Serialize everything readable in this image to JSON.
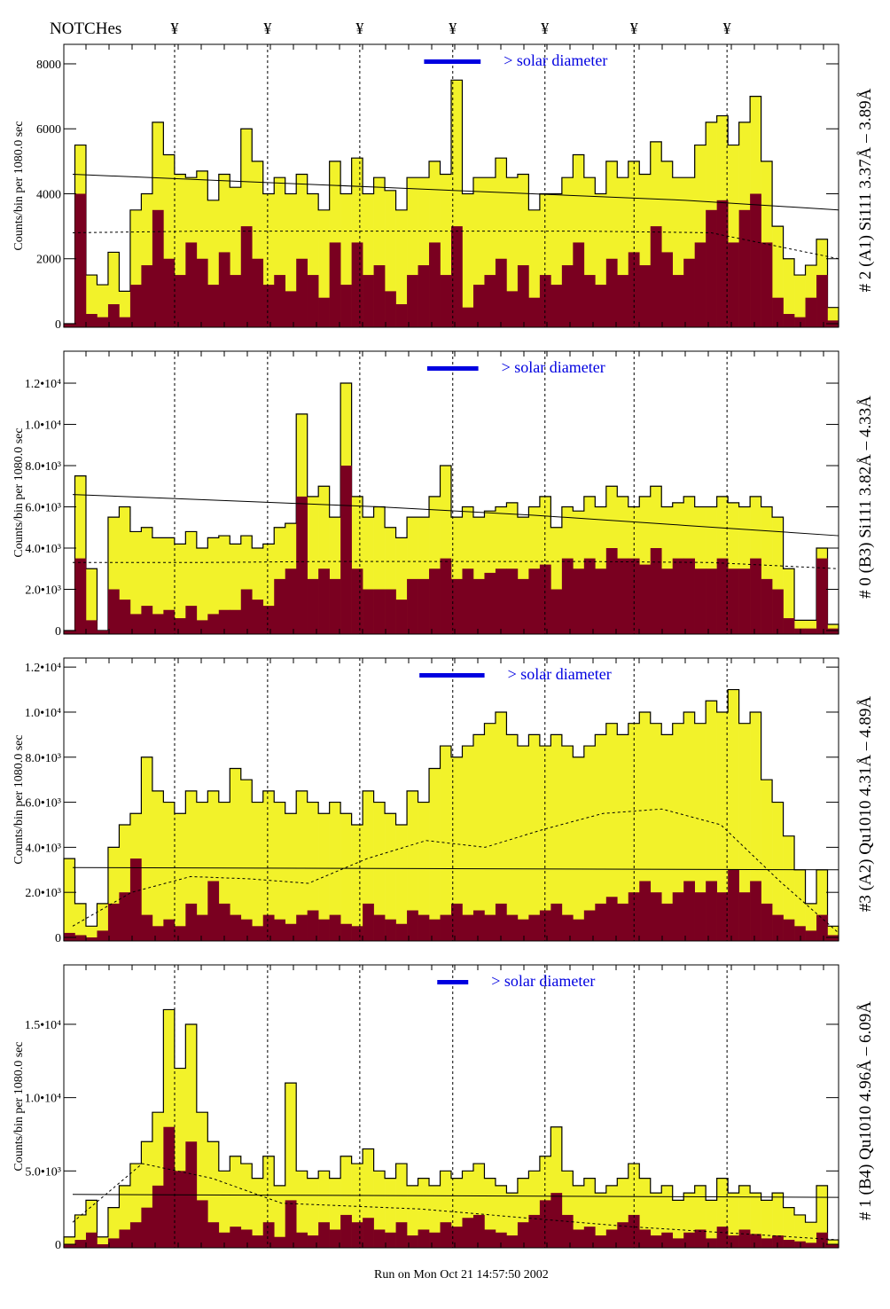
{
  "header": {
    "title": "NOTCHes",
    "notch_symbol": "¥"
  },
  "footer": "Run on Mon Oct 21 14:57:50 2002",
  "colors": {
    "total": "#f2f22a",
    "subset": "#7a0020",
    "solar_bar": "#0000e0",
    "solar_text": "#0000e0"
  },
  "chart_data": [
    {
      "type": "bar",
      "label": "# 2 (A1) Si111  3.37Å – 3.89Å",
      "ylabel": "Counts/bin per   1080.0 sec",
      "ylim": [
        0,
        8600
      ],
      "yticks": [
        0,
        2000,
        4000,
        6000,
        8000
      ],
      "ytick_labels": [
        "0",
        "2000",
        "4000",
        "6000",
        "8000"
      ],
      "legend": "> solar diameter",
      "series": [
        {
          "values": [
            0,
            5500,
            1500,
            1200,
            2200,
            1000,
            3500,
            4000,
            6200,
            5200,
            4600,
            4500,
            4700,
            3800,
            4600,
            4200,
            6000,
            5000,
            4000,
            4500,
            4000,
            4600,
            4000,
            3500,
            5000,
            4000,
            5100,
            4000,
            4500,
            4100,
            3500,
            4500,
            4500,
            5000,
            4600,
            7500,
            4000,
            4500,
            4500,
            5100,
            4500,
            4600,
            3500,
            4000,
            4000,
            4500,
            5200,
            4500,
            4000,
            5000,
            4500,
            5000,
            4600,
            5600,
            5000,
            4500,
            4500,
            5500,
            6200,
            6400,
            5500,
            6200,
            7000,
            5000,
            3000,
            2000,
            1500,
            1800,
            2600,
            500
          ]
        },
        {
          "values": [
            0,
            4000,
            300,
            200,
            600,
            200,
            1200,
            1800,
            3500,
            2000,
            1500,
            2500,
            2000,
            1200,
            2200,
            1500,
            3000,
            2000,
            1200,
            1500,
            1000,
            2000,
            1500,
            800,
            2500,
            1200,
            2500,
            1500,
            1800,
            1000,
            600,
            1500,
            1800,
            2500,
            1500,
            3000,
            500,
            1200,
            1500,
            2000,
            1000,
            1800,
            800,
            1500,
            1200,
            1800,
            2500,
            1500,
            1200,
            2000,
            1500,
            2200,
            1800,
            3000,
            2200,
            1500,
            2000,
            2500,
            3500,
            3800,
            2500,
            3500,
            4000,
            2500,
            800,
            300,
            200,
            800,
            1500,
            100
          ]
        }
      ],
      "smooth_solid": [
        4600,
        4400,
        4200,
        4000,
        3800,
        3500
      ],
      "smooth_dashed": [
        2800,
        2850,
        2850,
        2850,
        2850,
        2800,
        2000
      ],
      "notch_positions": [
        0.143,
        0.263,
        0.382,
        0.502,
        0.621,
        0.736,
        0.856
      ],
      "solar_bar": [
        0.465,
        0.538
      ]
    },
    {
      "type": "bar",
      "label": "# 0 (B3) Si111  3.82Å – 4.33Å",
      "ylabel": "Counts/bin per   1080.0 sec",
      "ylim": [
        0,
        13550
      ],
      "yticks": [
        0,
        2000,
        4000,
        6000,
        8000,
        10000,
        12000
      ],
      "ytick_labels": [
        "0",
        "2.0•10³",
        "4.0•10³",
        "6.0•10³",
        "8.0•10³",
        "1.0•10⁴",
        "1.2•10⁴"
      ],
      "legend": "> solar diameter",
      "series": [
        {
          "values": [
            0,
            7500,
            3000,
            0,
            5500,
            6000,
            4800,
            5000,
            4500,
            4500,
            4200,
            4800,
            4000,
            4500,
            4600,
            4200,
            4600,
            4000,
            4200,
            5000,
            5200,
            10500,
            6500,
            7000,
            5500,
            12000,
            6500,
            5500,
            6000,
            5000,
            4500,
            5500,
            5500,
            6500,
            8000,
            5500,
            6000,
            5500,
            5800,
            6000,
            6200,
            5500,
            6000,
            6500,
            5000,
            6000,
            5800,
            6500,
            6000,
            7000,
            6500,
            6000,
            6500,
            7000,
            6000,
            6200,
            6500,
            6000,
            6000,
            6500,
            6200,
            6000,
            6500,
            6000,
            5500,
            3000,
            500,
            500,
            4000,
            300
          ]
        },
        {
          "values": [
            0,
            3500,
            500,
            0,
            2000,
            1500,
            800,
            1200,
            800,
            1000,
            600,
            1200,
            500,
            800,
            1000,
            1000,
            2000,
            1500,
            1200,
            2500,
            3000,
            6500,
            2500,
            3000,
            2500,
            8000,
            3000,
            2000,
            2000,
            2000,
            1500,
            2500,
            2500,
            3000,
            3500,
            2500,
            3000,
            2500,
            2800,
            3000,
            3000,
            2500,
            3000,
            3200,
            2000,
            3500,
            3000,
            3500,
            3000,
            4000,
            3500,
            3500,
            3200,
            4000,
            3000,
            3500,
            3500,
            3000,
            3000,
            3500,
            3000,
            3000,
            3500,
            2500,
            2000,
            600,
            100,
            100,
            3500,
            100
          ]
        }
      ],
      "smooth_solid": [
        6600,
        6300,
        6000,
        5600,
        5100,
        4600
      ],
      "smooth_dashed": [
        3300,
        3300,
        3350,
        3350,
        3350,
        3300,
        3000
      ],
      "notch_positions": [
        0.143,
        0.263,
        0.382,
        0.502,
        0.621,
        0.736,
        0.856
      ],
      "solar_bar": [
        0.469,
        0.535
      ]
    },
    {
      "type": "bar",
      "label": "#3 (A2) Qu1010  4.31Å – 4.89Å",
      "ylabel": "Counts/bin per   1080.0 sec",
      "ylim": [
        0,
        12400
      ],
      "yticks": [
        0,
        2000,
        4000,
        6000,
        8000,
        10000,
        12000
      ],
      "ytick_labels": [
        "0",
        "2.0•10³",
        "4.0•10³",
        "6.0•10³",
        "8.0•10³",
        "1.0•10⁴",
        "1.2•10⁴"
      ],
      "legend": "> solar diameter",
      "series": [
        {
          "values": [
            3500,
            1500,
            500,
            1500,
            4000,
            5000,
            5500,
            8000,
            6500,
            6000,
            5500,
            6500,
            6000,
            6500,
            6000,
            7500,
            7000,
            6000,
            6500,
            6000,
            5500,
            6500,
            6000,
            5500,
            6000,
            5500,
            5000,
            6500,
            6000,
            5500,
            5000,
            6500,
            6000,
            7500,
            8500,
            8000,
            8500,
            9000,
            9500,
            10000,
            9000,
            8500,
            9000,
            8500,
            9000,
            8500,
            8000,
            8500,
            9000,
            9500,
            9000,
            9500,
            10000,
            9500,
            9000,
            9500,
            10000,
            9500,
            10500,
            10000,
            11000,
            9500,
            10000,
            7000,
            6000,
            4500,
            3000,
            1500,
            3000,
            500
          ]
        },
        {
          "values": [
            200,
            100,
            0,
            300,
            1500,
            2000,
            3500,
            1000,
            500,
            800,
            500,
            1500,
            1000,
            2500,
            1500,
            1000,
            800,
            500,
            1000,
            800,
            600,
            1000,
            1200,
            800,
            1000,
            600,
            500,
            1500,
            1000,
            800,
            600,
            1200,
            1000,
            800,
            1000,
            1500,
            1000,
            1200,
            1000,
            1500,
            1000,
            800,
            1000,
            1200,
            1500,
            1000,
            800,
            1200,
            1500,
            1800,
            1500,
            2000,
            2500,
            2000,
            1500,
            2000,
            2500,
            2000,
            2500,
            2000,
            3000,
            2000,
            2500,
            1500,
            1000,
            800,
            500,
            300,
            1000,
            100
          ]
        }
      ],
      "smooth_solid": [
        3100,
        3000
      ],
      "smooth_dashed": [
        500,
        2000,
        2700,
        2600,
        2400,
        3500,
        4300,
        4000,
        4800,
        5500,
        5700,
        5000,
        2500,
        200
      ],
      "notch_positions": [
        0.143,
        0.263,
        0.382,
        0.502,
        0.621,
        0.736,
        0.856
      ],
      "solar_bar": [
        0.459,
        0.543
      ]
    },
    {
      "type": "bar",
      "label": "# 1 (B4) Qu1010 4.96Å – 6.09Å",
      "ylabel": "Counts/bin per   1080.0 sec",
      "ylim": [
        0,
        19050
      ],
      "yticks": [
        0,
        5000,
        10000,
        15000
      ],
      "ytick_labels": [
        "0",
        "5.0•10³",
        "1.0•10⁴",
        "1.5•10⁴"
      ],
      "legend": "> solar diameter",
      "series": [
        {
          "values": [
            500,
            2000,
            3000,
            500,
            2500,
            4000,
            5500,
            7000,
            9000,
            16000,
            12000,
            15000,
            9000,
            7000,
            5000,
            6000,
            5500,
            4500,
            6000,
            4000,
            11000,
            5000,
            4500,
            5000,
            4500,
            6000,
            5500,
            6500,
            5000,
            4500,
            5500,
            4000,
            4500,
            4000,
            5000,
            4500,
            5000,
            5500,
            4500,
            4000,
            3500,
            4500,
            5000,
            6000,
            8000,
            5000,
            4000,
            4500,
            3500,
            4000,
            4500,
            5500,
            4500,
            3500,
            4000,
            3000,
            3500,
            4000,
            3000,
            4500,
            3500,
            4000,
            3500,
            3000,
            3500,
            2500,
            2000,
            1500,
            4000,
            300
          ]
        },
        {
          "values": [
            0,
            300,
            800,
            0,
            400,
            1000,
            1500,
            2500,
            4000,
            8000,
            5000,
            7000,
            3000,
            1500,
            800,
            1200,
            1000,
            600,
            1500,
            500,
            3000,
            800,
            600,
            1500,
            1000,
            2000,
            1500,
            1800,
            1000,
            800,
            1500,
            600,
            1000,
            800,
            1500,
            1200,
            1800,
            2000,
            1000,
            800,
            600,
            1500,
            2000,
            3000,
            3500,
            2000,
            1000,
            1200,
            600,
            1000,
            1500,
            2000,
            1000,
            600,
            800,
            400,
            800,
            1000,
            400,
            1200,
            600,
            1000,
            700,
            400,
            600,
            300,
            200,
            100,
            800,
            0
          ]
        }
      ],
      "smooth_solid": [
        3400,
        3300,
        3200
      ],
      "smooth_dashed": [
        1500,
        5500,
        4500,
        2800,
        2600,
        2400,
        2000,
        1600,
        1200,
        900,
        600,
        300
      ],
      "notch_positions": [
        0.143,
        0.263,
        0.382,
        0.502,
        0.621,
        0.736,
        0.856
      ],
      "solar_bar": [
        0.482,
        0.522
      ]
    }
  ]
}
